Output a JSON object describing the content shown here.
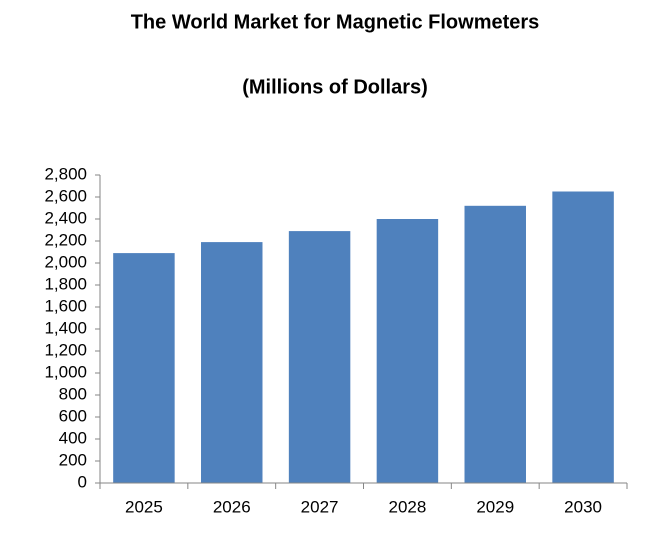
{
  "chart_data": {
    "type": "bar",
    "title": "The World Market for Magnetic Flowmeters",
    "subtitle": "(Millions of Dollars)",
    "categories": [
      "2025",
      "2026",
      "2027",
      "2028",
      "2029",
      "2030"
    ],
    "values": [
      2090,
      2190,
      2290,
      2400,
      2520,
      2650
    ],
    "color": "#4f81bd",
    "ylim": [
      0,
      2800
    ],
    "yticks": [
      0,
      200,
      400,
      600,
      800,
      {
        "value": 1000,
        "label": "1,000"
      },
      {
        "value": 1200,
        "label": "1,200"
      },
      {
        "value": 1400,
        "label": "1,400"
      },
      {
        "value": 1600,
        "label": "1,600"
      },
      {
        "value": 1800,
        "label": "1,800"
      },
      {
        "value": 2000,
        "label": "2,000"
      },
      {
        "value": 2200,
        "label": "2,200"
      },
      {
        "value": 2400,
        "label": "2,400"
      },
      {
        "value": 2600,
        "label": "2,600"
      },
      {
        "value": 2800,
        "label": "2,800"
      }
    ],
    "grid": false
  }
}
